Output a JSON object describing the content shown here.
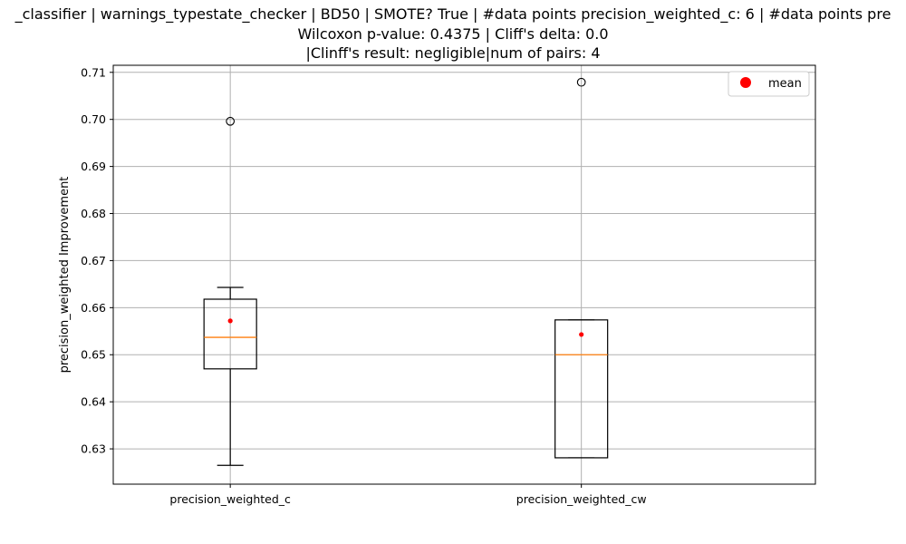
{
  "chart_data": {
    "type": "box",
    "title_lines": [
      "_classifier | warnings_typestate_checker | BD50 | SMOTE? True | #data points precision_weighted_c: 6 | #data points pre",
      "Wilcoxon p-value: 0.4375 | Cliff's delta: 0.0",
      "|Clinff's result: negligible|num of pairs: 4"
    ],
    "ylabel": "precision_weighted Improvement",
    "xlabel": "",
    "ylim": [
      0.6225,
      0.7115
    ],
    "yticks": [
      0.63,
      0.64,
      0.65,
      0.66,
      0.67,
      0.68,
      0.69,
      0.7,
      0.71
    ],
    "ytick_labels": [
      "0.63",
      "0.64",
      "0.65",
      "0.66",
      "0.67",
      "0.68",
      "0.69",
      "0.70",
      "0.71"
    ],
    "grid": true,
    "legend": {
      "placement": "top-right",
      "entries": [
        {
          "label": "mean",
          "color": "#ff0000",
          "marker": "circle"
        }
      ]
    },
    "categories": [
      "precision_weighted_c",
      "precision_weighted_cw"
    ],
    "boxes": [
      {
        "category": "precision_weighted_c",
        "whisker_low": 0.6265,
        "q1": 0.647,
        "median": 0.6537,
        "q3": 0.6618,
        "whisker_high": 0.6643,
        "mean": 0.6572,
        "outliers": [
          0.6996
        ]
      },
      {
        "category": "precision_weighted_cw",
        "whisker_low": 0.6281,
        "q1": 0.6281,
        "median": 0.65,
        "q3": 0.6574,
        "whisker_high": 0.6574,
        "mean": 0.6543,
        "outliers": [
          0.7079
        ]
      }
    ],
    "colors": {
      "box": "#000000",
      "median": "#ff7f0e",
      "mean": "#ff0000",
      "grid": "#b0b0b0",
      "outlier": "#000000"
    }
  }
}
